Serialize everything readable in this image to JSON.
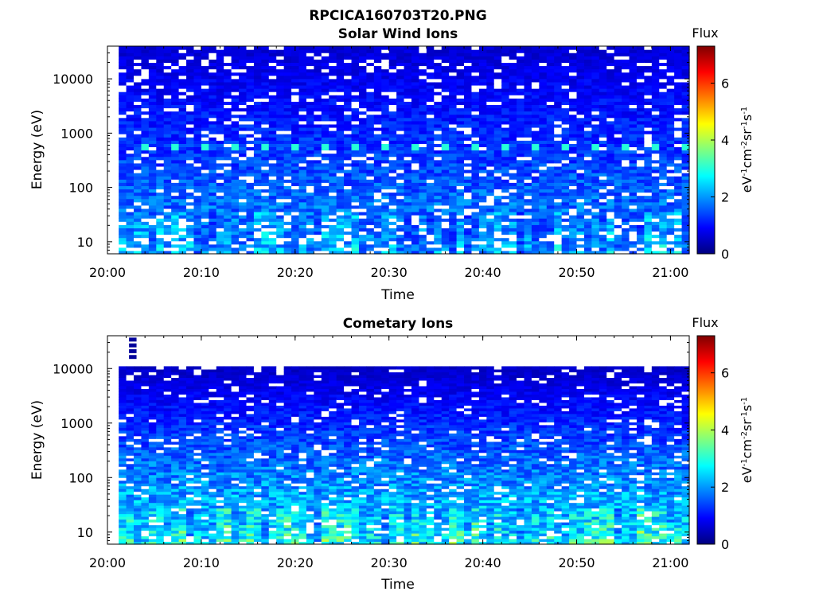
{
  "figure": {
    "title": "RPCICA160703T20.PNG"
  },
  "colors": {
    "colormap": "jet",
    "colorbar_stops": [
      "#00007f",
      "#0000ff",
      "#007fff",
      "#00ffff",
      "#7fff7f",
      "#ffff00",
      "#ff7f00",
      "#ff0000",
      "#7f0000"
    ],
    "empty_cell": "#ffffff"
  },
  "chart_data": [
    {
      "type": "heatmap",
      "title": "Solar Wind Ions",
      "xlabel": "Time",
      "ylabel": "Energy (eV)",
      "x_ticks": [
        "20:00",
        "20:10",
        "20:20",
        "20:30",
        "20:40",
        "20:50",
        "21:00"
      ],
      "x_tick_minutes": [
        0,
        10,
        20,
        30,
        40,
        50,
        60
      ],
      "xlim_minutes": [
        0,
        62
      ],
      "data_start_minute": 1.2,
      "y_scale": "log",
      "y_ticks": [
        "10",
        "100",
        "1000",
        "10000"
      ],
      "y_tick_values": [
        10,
        100,
        1000,
        10000
      ],
      "ylim": [
        6,
        40000
      ],
      "data_top_energy": 40000,
      "grid": false,
      "colorbar": {
        "label": "Flux",
        "units": "eV-1cm-2sr-1s-1",
        "ticks": [
          "0",
          "2",
          "4",
          "6"
        ],
        "tick_values": [
          0,
          2,
          4,
          6
        ],
        "range": [
          0,
          7.3
        ]
      },
      "features": {
        "periodic_peak": {
          "energy_eV": 580,
          "flux": 3.0,
          "period_minutes": 3.2,
          "first_minute": 3.3
        },
        "low_energy_flux": 2.0,
        "high_energy_flux": 0.6,
        "empty_fraction": 0.11
      }
    },
    {
      "type": "heatmap",
      "title": "Cometary Ions",
      "xlabel": "Time",
      "ylabel": "Energy (eV)",
      "x_ticks": [
        "20:00",
        "20:10",
        "20:20",
        "20:30",
        "20:40",
        "20:50",
        "21:00"
      ],
      "x_tick_minutes": [
        0,
        10,
        20,
        30,
        40,
        50,
        60
      ],
      "xlim_minutes": [
        0,
        62
      ],
      "data_start_minute": 1.2,
      "y_scale": "log",
      "y_ticks": [
        "10",
        "100",
        "1000",
        "10000"
      ],
      "y_tick_values": [
        10,
        100,
        1000,
        10000
      ],
      "ylim": [
        6,
        40000
      ],
      "data_top_energy": 11000,
      "grid": false,
      "colorbar": {
        "label": "Flux",
        "units": "eV-1cm-2sr-1s-1",
        "ticks": [
          "0",
          "2",
          "4",
          "6"
        ],
        "tick_values": [
          0,
          2,
          4,
          6
        ],
        "range": [
          0,
          7.3
        ]
      },
      "features": {
        "low_energy_flux": 2.7,
        "high_energy_flux": 0.5,
        "empty_fraction": 0.08,
        "isolated_column": {
          "minute": 2.3,
          "energy_range": [
            15000,
            40000
          ],
          "flux": 0.2
        }
      }
    }
  ]
}
